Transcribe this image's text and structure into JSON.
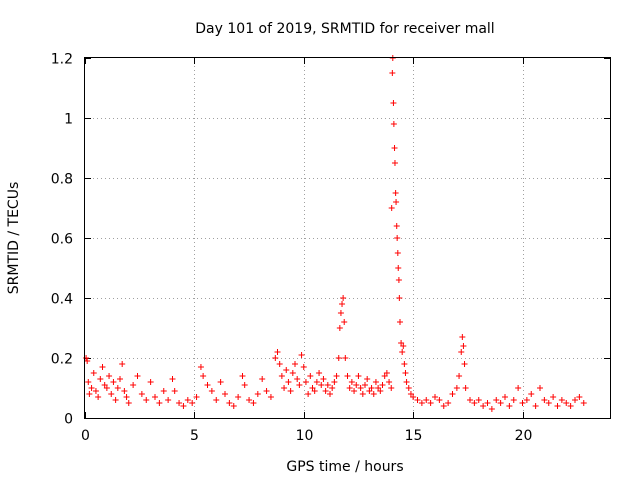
{
  "chart_data": {
    "type": "scatter",
    "title": "Day 101 of 2019, SRMTID for receiver mall",
    "xlabel": "GPS time / hours",
    "ylabel": "SRMTID / TECUs",
    "xlim": [
      0,
      24
    ],
    "ylim": [
      0,
      1.2
    ],
    "xticks": [
      0,
      5,
      10,
      15,
      20
    ],
    "xtick_labels": [
      "0",
      "5",
      "10",
      "15",
      "20"
    ],
    "yticks": [
      0,
      0.2,
      0.4,
      0.6,
      0.8,
      1.0,
      1.2
    ],
    "ytick_labels": [
      "0",
      "0.2",
      "0.4",
      "0.6",
      "0.8",
      "1",
      "1.2"
    ],
    "grid": true,
    "marker": "+",
    "color": "#ff0000",
    "series": [
      {
        "name": "SRMTID",
        "points": [
          [
            0.05,
            0.2
          ],
          [
            0.1,
            0.19
          ],
          [
            0.15,
            0.12
          ],
          [
            0.2,
            0.08
          ],
          [
            0.3,
            0.1
          ],
          [
            0.4,
            0.15
          ],
          [
            0.5,
            0.09
          ],
          [
            0.6,
            0.07
          ],
          [
            0.7,
            0.13
          ],
          [
            0.8,
            0.17
          ],
          [
            0.9,
            0.11
          ],
          [
            1.0,
            0.1
          ],
          [
            1.1,
            0.14
          ],
          [
            1.2,
            0.08
          ],
          [
            1.3,
            0.12
          ],
          [
            1.4,
            0.06
          ],
          [
            1.5,
            0.1
          ],
          [
            1.6,
            0.13
          ],
          [
            1.7,
            0.18
          ],
          [
            1.8,
            0.09
          ],
          [
            1.9,
            0.07
          ],
          [
            2.0,
            0.05
          ],
          [
            2.2,
            0.11
          ],
          [
            2.4,
            0.14
          ],
          [
            2.6,
            0.08
          ],
          [
            2.8,
            0.06
          ],
          [
            3.0,
            0.12
          ],
          [
            3.2,
            0.07
          ],
          [
            3.4,
            0.05
          ],
          [
            3.6,
            0.09
          ],
          [
            3.8,
            0.06
          ],
          [
            4.0,
            0.13
          ],
          [
            4.1,
            0.09
          ],
          [
            4.3,
            0.05
          ],
          [
            4.5,
            0.04
          ],
          [
            4.7,
            0.06
          ],
          [
            4.9,
            0.05
          ],
          [
            5.1,
            0.07
          ],
          [
            5.3,
            0.17
          ],
          [
            5.4,
            0.14
          ],
          [
            5.6,
            0.11
          ],
          [
            5.8,
            0.09
          ],
          [
            6.0,
            0.06
          ],
          [
            6.2,
            0.12
          ],
          [
            6.4,
            0.08
          ],
          [
            6.6,
            0.05
          ],
          [
            6.8,
            0.04
          ],
          [
            7.0,
            0.07
          ],
          [
            7.2,
            0.14
          ],
          [
            7.3,
            0.11
          ],
          [
            7.5,
            0.06
          ],
          [
            7.7,
            0.05
          ],
          [
            7.9,
            0.08
          ],
          [
            8.1,
            0.13
          ],
          [
            8.3,
            0.09
          ],
          [
            8.5,
            0.07
          ],
          [
            8.7,
            0.2
          ],
          [
            8.8,
            0.22
          ],
          [
            8.9,
            0.18
          ],
          [
            9.0,
            0.14
          ],
          [
            9.1,
            0.1
          ],
          [
            9.2,
            0.16
          ],
          [
            9.3,
            0.12
          ],
          [
            9.4,
            0.09
          ],
          [
            9.5,
            0.15
          ],
          [
            9.6,
            0.18
          ],
          [
            9.7,
            0.13
          ],
          [
            9.8,
            0.11
          ],
          [
            9.9,
            0.21
          ],
          [
            10.0,
            0.17
          ],
          [
            10.1,
            0.12
          ],
          [
            10.2,
            0.08
          ],
          [
            10.3,
            0.14
          ],
          [
            10.4,
            0.1
          ],
          [
            10.5,
            0.09
          ],
          [
            10.6,
            0.12
          ],
          [
            10.7,
            0.15
          ],
          [
            10.8,
            0.11
          ],
          [
            10.9,
            0.13
          ],
          [
            11.0,
            0.09
          ],
          [
            11.1,
            0.11
          ],
          [
            11.2,
            0.08
          ],
          [
            11.3,
            0.1
          ],
          [
            11.4,
            0.12
          ],
          [
            11.5,
            0.14
          ],
          [
            11.6,
            0.2
          ],
          [
            11.65,
            0.3
          ],
          [
            11.7,
            0.35
          ],
          [
            11.75,
            0.38
          ],
          [
            11.8,
            0.4
          ],
          [
            11.85,
            0.32
          ],
          [
            11.9,
            0.2
          ],
          [
            12.0,
            0.14
          ],
          [
            12.1,
            0.1
          ],
          [
            12.2,
            0.12
          ],
          [
            12.3,
            0.09
          ],
          [
            12.4,
            0.11
          ],
          [
            12.5,
            0.14
          ],
          [
            12.6,
            0.1
          ],
          [
            12.7,
            0.08
          ],
          [
            12.8,
            0.11
          ],
          [
            12.9,
            0.13
          ],
          [
            13.0,
            0.09
          ],
          [
            13.1,
            0.1
          ],
          [
            13.2,
            0.08
          ],
          [
            13.3,
            0.12
          ],
          [
            13.4,
            0.1
          ],
          [
            13.5,
            0.09
          ],
          [
            13.6,
            0.11
          ],
          [
            13.7,
            0.14
          ],
          [
            13.8,
            0.15
          ],
          [
            13.9,
            0.12
          ],
          [
            14.0,
            0.1
          ],
          [
            14.02,
            0.7
          ],
          [
            14.05,
            1.15
          ],
          [
            14.07,
            1.2
          ],
          [
            14.1,
            1.05
          ],
          [
            14.12,
            0.98
          ],
          [
            14.15,
            0.9
          ],
          [
            14.17,
            0.85
          ],
          [
            14.2,
            0.75
          ],
          [
            14.22,
            0.72
          ],
          [
            14.25,
            0.64
          ],
          [
            14.27,
            0.6
          ],
          [
            14.3,
            0.55
          ],
          [
            14.32,
            0.5
          ],
          [
            14.35,
            0.46
          ],
          [
            14.37,
            0.4
          ],
          [
            14.4,
            0.32
          ],
          [
            14.45,
            0.25
          ],
          [
            14.5,
            0.22
          ],
          [
            14.55,
            0.24
          ],
          [
            14.6,
            0.18
          ],
          [
            14.65,
            0.15
          ],
          [
            14.7,
            0.12
          ],
          [
            14.8,
            0.1
          ],
          [
            14.9,
            0.08
          ],
          [
            15.0,
            0.07
          ],
          [
            15.2,
            0.06
          ],
          [
            15.4,
            0.05
          ],
          [
            15.6,
            0.06
          ],
          [
            15.8,
            0.05
          ],
          [
            16.0,
            0.07
          ],
          [
            16.2,
            0.06
          ],
          [
            16.4,
            0.04
          ],
          [
            16.6,
            0.05
          ],
          [
            16.8,
            0.08
          ],
          [
            17.0,
            0.1
          ],
          [
            17.1,
            0.14
          ],
          [
            17.2,
            0.22
          ],
          [
            17.25,
            0.27
          ],
          [
            17.3,
            0.24
          ],
          [
            17.35,
            0.18
          ],
          [
            17.4,
            0.1
          ],
          [
            17.6,
            0.06
          ],
          [
            17.8,
            0.05
          ],
          [
            18.0,
            0.06
          ],
          [
            18.2,
            0.04
          ],
          [
            18.4,
            0.05
          ],
          [
            18.6,
            0.03
          ],
          [
            18.8,
            0.06
          ],
          [
            19.0,
            0.05
          ],
          [
            19.2,
            0.07
          ],
          [
            19.4,
            0.04
          ],
          [
            19.6,
            0.06
          ],
          [
            19.8,
            0.1
          ],
          [
            20.0,
            0.05
          ],
          [
            20.2,
            0.06
          ],
          [
            20.4,
            0.08
          ],
          [
            20.6,
            0.04
          ],
          [
            20.8,
            0.1
          ],
          [
            21.0,
            0.06
          ],
          [
            21.2,
            0.05
          ],
          [
            21.4,
            0.07
          ],
          [
            21.6,
            0.04
          ],
          [
            21.8,
            0.06
          ],
          [
            22.0,
            0.05
          ],
          [
            22.2,
            0.04
          ],
          [
            22.4,
            0.06
          ],
          [
            22.6,
            0.07
          ],
          [
            22.8,
            0.05
          ]
        ]
      }
    ]
  }
}
